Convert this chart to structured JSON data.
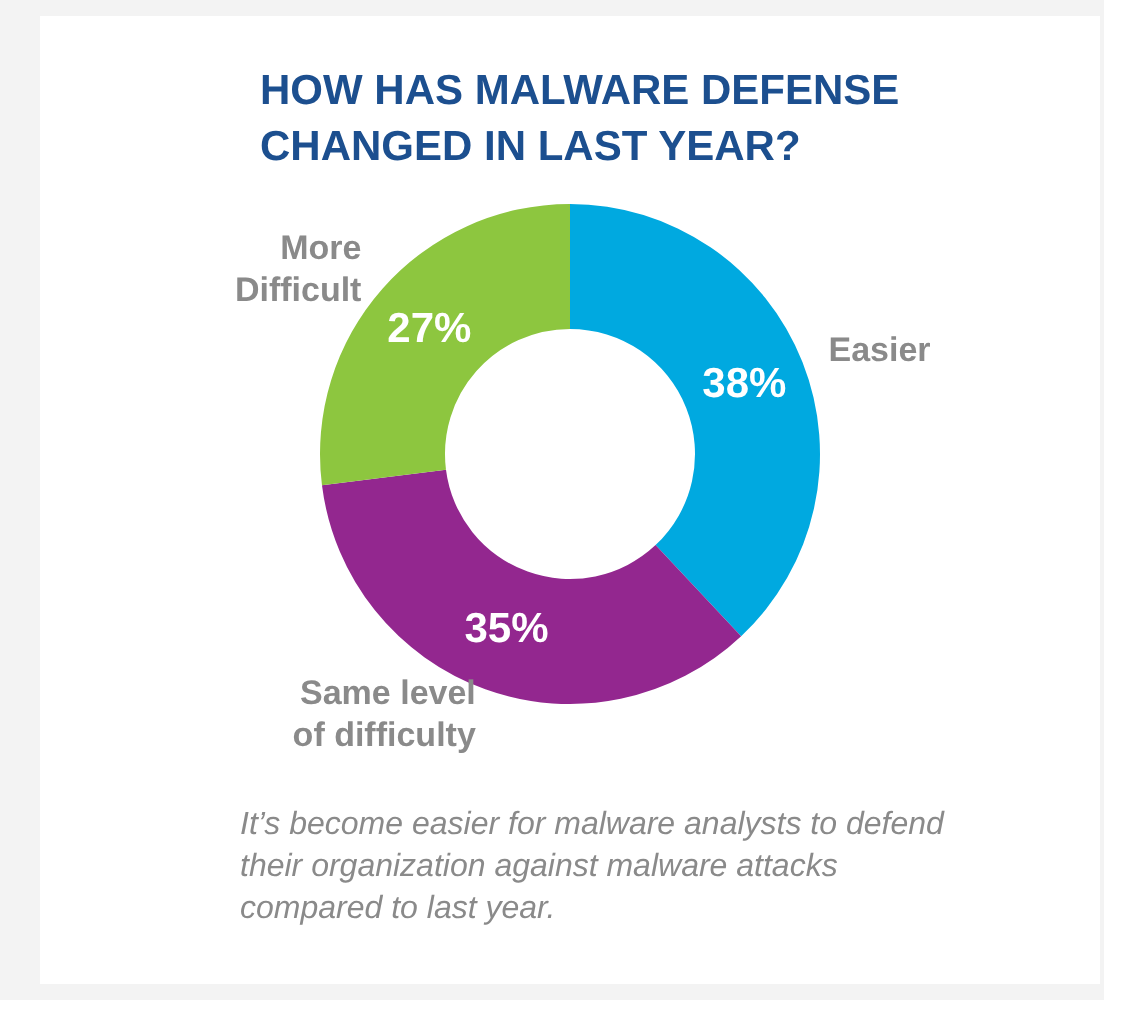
{
  "chart_data": {
    "type": "donut",
    "title": "HOW HAS MALWARE DEFENSE CHANGED IN LAST YEAR?",
    "categories": [
      "Easier",
      "Same level of difficulty",
      "More Difficult"
    ],
    "values": [
      38,
      35,
      27
    ],
    "colors": [
      "#00a9e0",
      "#93278f",
      "#8dc63f"
    ],
    "value_labels": [
      "38%",
      "35%",
      "27%"
    ],
    "legend": false,
    "annotations": [
      "It’s become easier for malware analysts to defend their organization against malware attacks compared to last year."
    ]
  }
}
